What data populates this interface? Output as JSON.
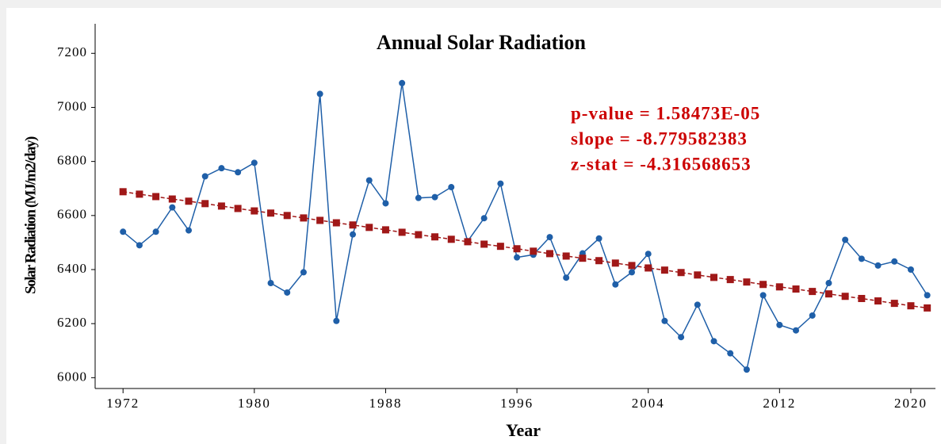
{
  "chart_data": {
    "type": "line",
    "title": "Annual Solar Radiation",
    "x_label": "Year",
    "y_label": "Solar Radiation (MJ/m2/day)",
    "annotations": [
      "p-value = 1.58473E-05",
      "slope =  -8.779582383",
      "z-stat = -4.316568653"
    ],
    "annotation_color": "#cc0000",
    "x": [
      1972,
      1973,
      1974,
      1975,
      1976,
      1977,
      1978,
      1979,
      1980,
      1981,
      1982,
      1983,
      1984,
      1985,
      1986,
      1987,
      1988,
      1989,
      1990,
      1991,
      1992,
      1993,
      1994,
      1995,
      1996,
      1997,
      1998,
      1999,
      2000,
      2001,
      2002,
      2003,
      2004,
      2005,
      2006,
      2007,
      2008,
      2009,
      2010,
      2011,
      2012,
      2013,
      2014,
      2015,
      2016,
      2017,
      2018,
      2019,
      2020,
      2021
    ],
    "series": [
      {
        "color": "#1f5fa8",
        "marker": "circle",
        "dashed": false,
        "values": [
          6540,
          6490,
          6540,
          6630,
          6545,
          6745,
          6775,
          6760,
          6795,
          6350,
          6315,
          6390,
          7050,
          6210,
          6530,
          6730,
          6645,
          7090,
          6665,
          6668,
          6705,
          6505,
          6590,
          6718,
          6445,
          6455,
          6520,
          6370,
          6460,
          6515,
          6345,
          6390,
          6458,
          6210,
          6150,
          6270,
          6135,
          6090,
          6030,
          6305,
          6195,
          6175,
          6230,
          6350,
          6510,
          6440,
          6415,
          6430,
          6400,
          6305
        ]
      },
      {
        "color": "#a01818",
        "marker": "square",
        "dashed": true,
        "values": [
          6688,
          6679,
          6670,
          6661,
          6653,
          6644,
          6635,
          6626,
          6617,
          6609,
          6600,
          6591,
          6582,
          6573,
          6565,
          6556,
          6547,
          6538,
          6529,
          6521,
          6512,
          6503,
          6494,
          6486,
          6477,
          6468,
          6459,
          6450,
          6442,
          6433,
          6424,
          6415,
          6406,
          6398,
          6389,
          6380,
          6371,
          6363,
          6354,
          6345,
          6336,
          6328,
          6319,
          6310,
          6301,
          6293,
          6284,
          6275,
          6266,
          6258
        ]
      }
    ],
    "xlim": [
      1970.3,
      2021.5
    ],
    "xticks": [
      1972,
      1980,
      1988,
      1996,
      2004,
      2012,
      2020
    ],
    "ylim": [
      5960,
      7280
    ],
    "yticks": [
      6000,
      6200,
      6400,
      6600,
      6800,
      7000,
      7200
    ],
    "grid": false
  }
}
